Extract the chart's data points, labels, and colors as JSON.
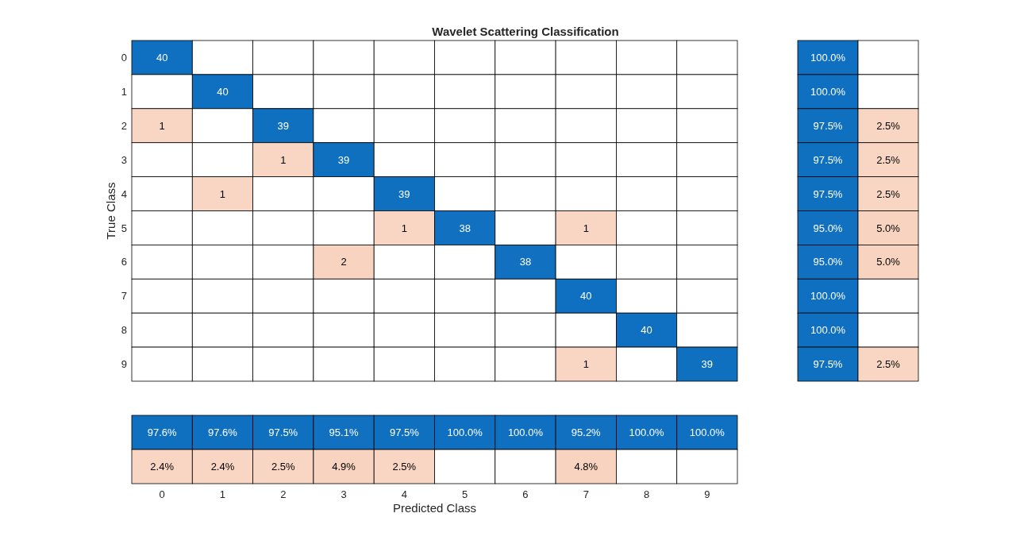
{
  "chart_data": [
    {
      "type": "heatmap",
      "title": "Wavelet Scattering Classification",
      "ylabel": "True Class",
      "tick_labels": "y",
      "data_labels": true,
      "colors": [
        "#0f6fc0",
        "#f8d3bf"
      ],
      "categories": [
        null,
        null,
        null,
        null,
        null,
        null,
        null,
        null,
        null,
        null
      ],
      "y_categories": [
        "0",
        "1",
        "2",
        "3",
        "4",
        "5",
        "6",
        "7",
        "8",
        "9"
      ],
      "cells": [
        [
          40,
          null,
          null,
          null,
          null,
          null,
          null,
          null,
          null,
          null
        ],
        [
          null,
          40,
          null,
          null,
          null,
          null,
          null,
          null,
          null,
          null
        ],
        [
          1,
          null,
          39,
          null,
          null,
          null,
          null,
          null,
          null,
          null
        ],
        [
          null,
          null,
          1,
          39,
          null,
          null,
          null,
          null,
          null,
          null
        ],
        [
          null,
          1,
          null,
          null,
          39,
          null,
          null,
          null,
          null,
          null
        ],
        [
          null,
          null,
          null,
          null,
          1,
          38,
          null,
          1,
          null,
          null
        ],
        [
          null,
          null,
          null,
          2,
          null,
          null,
          38,
          null,
          null,
          null
        ],
        [
          null,
          null,
          null,
          null,
          null,
          null,
          null,
          40,
          null,
          null
        ],
        [
          null,
          null,
          null,
          null,
          null,
          null,
          null,
          null,
          40,
          null
        ],
        [
          null,
          null,
          null,
          null,
          null,
          null,
          null,
          1,
          null,
          39
        ]
      ]
    },
    {
      "type": "heatmap",
      "tick_labels": false,
      "colors": [
        "#0f6fc0",
        "#f8d3bf"
      ],
      "categories": [
        null,
        null
      ],
      "y_categories": [
        null,
        null,
        null,
        null,
        null,
        null,
        null,
        null,
        null,
        null
      ],
      "cells": [
        [
          100,
          null
        ],
        [
          100,
          null
        ],
        [
          97.5,
          2.5
        ],
        [
          97.5,
          2.5
        ],
        [
          97.5,
          2.5
        ],
        [
          95,
          5
        ],
        [
          95,
          5
        ],
        [
          100,
          null
        ],
        [
          100,
          null
        ],
        [
          97.5,
          2.5
        ]
      ],
      "cell_labels": [
        [
          "100.0%",
          null
        ],
        [
          "100.0%",
          null
        ],
        [
          "97.5%",
          "2.5%"
        ],
        [
          "97.5%",
          "2.5%"
        ],
        [
          "97.5%",
          "2.5%"
        ],
        [
          "95.0%",
          "5.0%"
        ],
        [
          "95.0%",
          "5.0%"
        ],
        [
          "100.0%",
          null
        ],
        [
          "100.0%",
          null
        ],
        [
          "97.5%",
          "2.5%"
        ]
      ]
    },
    {
      "type": "heatmap",
      "xlabel": "Predicted Class",
      "tick_labels": "x",
      "colors": [
        "#0f6fc0",
        "#f8d3bf"
      ],
      "categories": [
        "0",
        "1",
        "2",
        "3",
        "4",
        "5",
        "6",
        "7",
        "8",
        "9"
      ],
      "y_categories": [
        null,
        null
      ],
      "cells": [
        [
          97.6,
          97.6,
          97.5,
          95.1,
          97.5,
          100,
          100,
          95.2,
          100,
          100
        ],
        [
          2.4,
          2.4,
          2.5,
          4.9,
          2.5,
          null,
          null,
          4.8,
          null,
          null
        ]
      ],
      "cell_labels": [
        [
          "97.6%",
          "97.6%",
          "97.5%",
          "95.1%",
          "97.5%",
          "100.0%",
          "100.0%",
          "95.2%",
          "100.0%",
          "100.0%"
        ],
        [
          "2.4%",
          "2.4%",
          "2.5%",
          "4.9%",
          "2.5%",
          null,
          null,
          "4.8%",
          null,
          null
        ]
      ]
    }
  ]
}
